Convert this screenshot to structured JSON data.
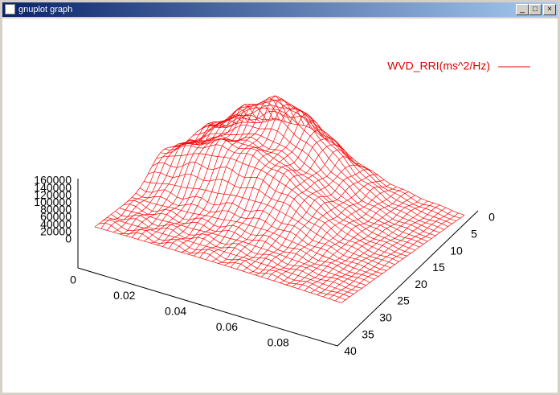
{
  "window": {
    "title": "gnuplot graph"
  },
  "plot": {
    "legend": "WVD_RRI(ms^2/Hz)",
    "zticks": [
      "160000",
      "140000",
      "120000",
      "100000",
      "80000",
      "60000",
      "40000",
      "20000",
      "0"
    ],
    "xticks": [
      "0",
      "0.02",
      "0.04",
      "0.06",
      "0.08"
    ],
    "yticks": [
      "0",
      "5",
      "10",
      "15",
      "20",
      "25",
      "30",
      "35",
      "40"
    ]
  }
}
